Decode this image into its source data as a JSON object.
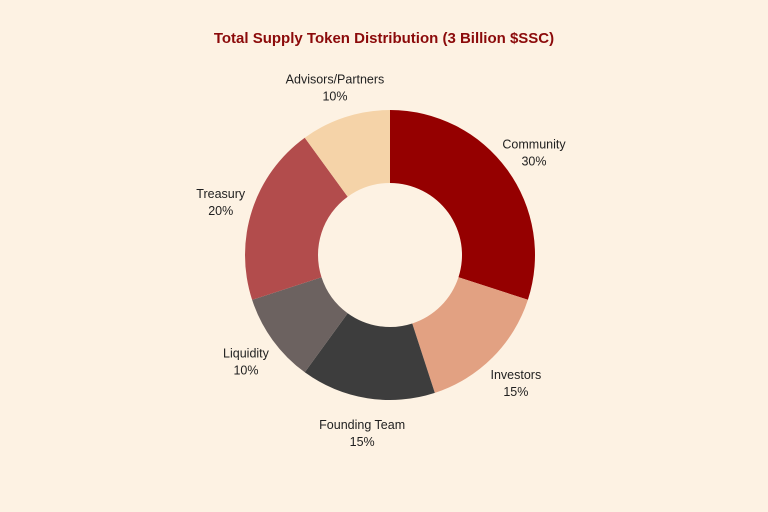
{
  "chart_data": {
    "type": "pie",
    "title": "Total Supply Token Distribution (3 Billion $SSC)",
    "donut": true,
    "slices": [
      {
        "label": "Community",
        "value": 30,
        "percent_label": "30%",
        "color": "#950000"
      },
      {
        "label": "Investors",
        "value": 15,
        "percent_label": "15%",
        "color": "#e2a182"
      },
      {
        "label": "Founding Team",
        "value": 15,
        "percent_label": "15%",
        "color": "#3d3d3d"
      },
      {
        "label": "Liquidity",
        "value": 10,
        "percent_label": "10%",
        "color": "#6c6260"
      },
      {
        "label": "Treasury",
        "value": 20,
        "percent_label": "20%",
        "color": "#b24c4c"
      },
      {
        "label": "Advisors/Partners",
        "value": 10,
        "percent_label": "10%",
        "color": "#f5d3a8"
      }
    ]
  },
  "colors": {
    "background": "#fdf2e3",
    "title": "#8b0a0a",
    "hole": "#fdf2e3"
  }
}
